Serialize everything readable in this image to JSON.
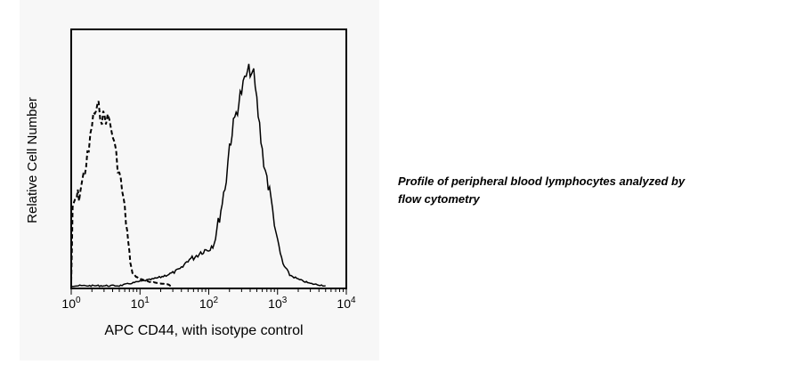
{
  "chart_data": {
    "type": "histogram",
    "title": "",
    "xlabel": "APC CD44, with isotype control",
    "ylabel": "Relative Cell Number",
    "x_scale": "log",
    "xlim": [
      1,
      10000
    ],
    "ylim": [
      0,
      1
    ],
    "x_ticks": [
      1,
      10,
      100,
      1000,
      10000
    ],
    "x_tick_labels": [
      {
        "base": "10",
        "exp": "0"
      },
      {
        "base": "10",
        "exp": "1"
      },
      {
        "base": "10",
        "exp": "2"
      },
      {
        "base": "10",
        "exp": "3"
      },
      {
        "base": "10",
        "exp": "4"
      }
    ],
    "grid": false,
    "legend": "none",
    "series": [
      {
        "style": "dashed",
        "color": "#000000",
        "points": [
          [
            1.0,
            0.02
          ],
          [
            1.05,
            0.34
          ],
          [
            1.15,
            0.4
          ],
          [
            1.3,
            0.42
          ],
          [
            1.5,
            0.5
          ],
          [
            1.8,
            0.62
          ],
          [
            2.0,
            0.75
          ],
          [
            2.2,
            0.8
          ],
          [
            2.5,
            0.82
          ],
          [
            2.8,
            0.78
          ],
          [
            3.2,
            0.78
          ],
          [
            3.6,
            0.76
          ],
          [
            4.0,
            0.7
          ],
          [
            4.5,
            0.6
          ],
          [
            5.0,
            0.52
          ],
          [
            5.5,
            0.44
          ],
          [
            6.0,
            0.35
          ],
          [
            6.5,
            0.25
          ],
          [
            7.0,
            0.15
          ],
          [
            7.5,
            0.08
          ],
          [
            8.0,
            0.05
          ],
          [
            10.0,
            0.03
          ],
          [
            13.0,
            0.02
          ],
          [
            20.0,
            0.01
          ],
          [
            30.0,
            0.0
          ]
        ]
      },
      {
        "style": "solid",
        "color": "#000000",
        "points": [
          [
            1.0,
            0.0
          ],
          [
            5.0,
            0.0
          ],
          [
            10.0,
            0.02
          ],
          [
            15.0,
            0.03
          ],
          [
            20.0,
            0.04
          ],
          [
            30.0,
            0.06
          ],
          [
            40.0,
            0.08
          ],
          [
            50.0,
            0.12
          ],
          [
            60.0,
            0.13
          ],
          [
            80.0,
            0.16
          ],
          [
            100.0,
            0.17
          ],
          [
            120.0,
            0.2
          ],
          [
            150.0,
            0.35
          ],
          [
            180.0,
            0.5
          ],
          [
            200.0,
            0.65
          ],
          [
            250.0,
            0.8
          ],
          [
            300.0,
            0.9
          ],
          [
            350.0,
            0.97
          ],
          [
            400.0,
            1.0
          ],
          [
            450.0,
            0.97
          ],
          [
            500.0,
            0.85
          ],
          [
            600.0,
            0.62
          ],
          [
            700.0,
            0.5
          ],
          [
            800.0,
            0.4
          ],
          [
            900.0,
            0.3
          ],
          [
            1000.0,
            0.2
          ],
          [
            1200.0,
            0.1
          ],
          [
            1500.0,
            0.05
          ],
          [
            2000.0,
            0.03
          ],
          [
            3000.0,
            0.01
          ],
          [
            5000.0,
            0.0
          ]
        ]
      }
    ]
  },
  "caption": {
    "line1": "Profile of peripheral blood lymphocytes analyzed by",
    "line2": "flow cytometry"
  }
}
